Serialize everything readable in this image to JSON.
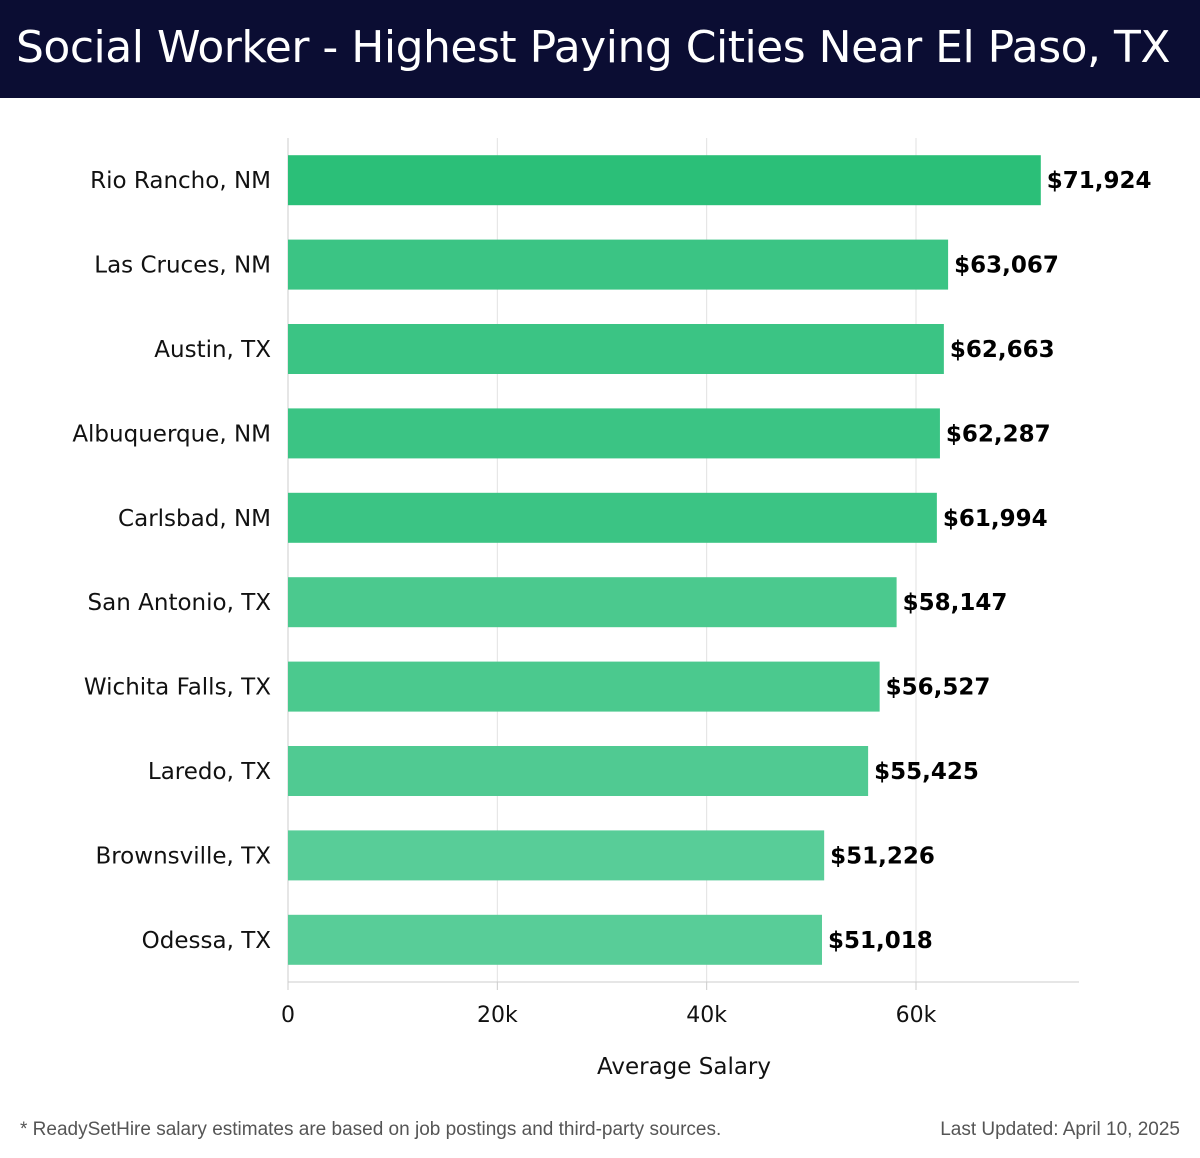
{
  "header": {
    "title": "Social Worker - Highest Paying Cities Near El Paso, TX"
  },
  "chart_data": {
    "type": "bar",
    "orientation": "horizontal",
    "title": "Social Worker - Highest Paying Cities Near El Paso, TX",
    "xlabel": "Average Salary",
    "ylabel": "",
    "xlim": [
      0,
      75000
    ],
    "xticks": [
      0,
      20000,
      40000,
      60000
    ],
    "xtick_labels": [
      "0",
      "20k",
      "40k",
      "60k"
    ],
    "grid": true,
    "categories": [
      "Rio Rancho, NM",
      "Las Cruces, NM",
      "Austin, TX",
      "Albuquerque, NM",
      "Carlsbad, NM",
      "San Antonio, TX",
      "Wichita Falls, TX",
      "Laredo, TX",
      "Brownsville, TX",
      "Odessa, TX"
    ],
    "values": [
      71924,
      63067,
      62663,
      62287,
      61994,
      58147,
      56527,
      55425,
      51226,
      51018
    ],
    "value_labels": [
      "$71,924",
      "$63,067",
      "$62,663",
      "$62,287",
      "$61,994",
      "$58,147",
      "$56,527",
      "$55,425",
      "$51,226",
      "$51,018"
    ],
    "colors": [
      "#2bbf78",
      "#3bc484",
      "#3bc484",
      "#3bc484",
      "#3bc484",
      "#4bc98e",
      "#4bc98e",
      "#50ca92",
      "#58cd98",
      "#58cd98"
    ]
  },
  "footer": {
    "note": "* ReadySetHire salary estimates are based on job postings and third-party sources.",
    "updated": "Last Updated: April 10, 2025"
  }
}
